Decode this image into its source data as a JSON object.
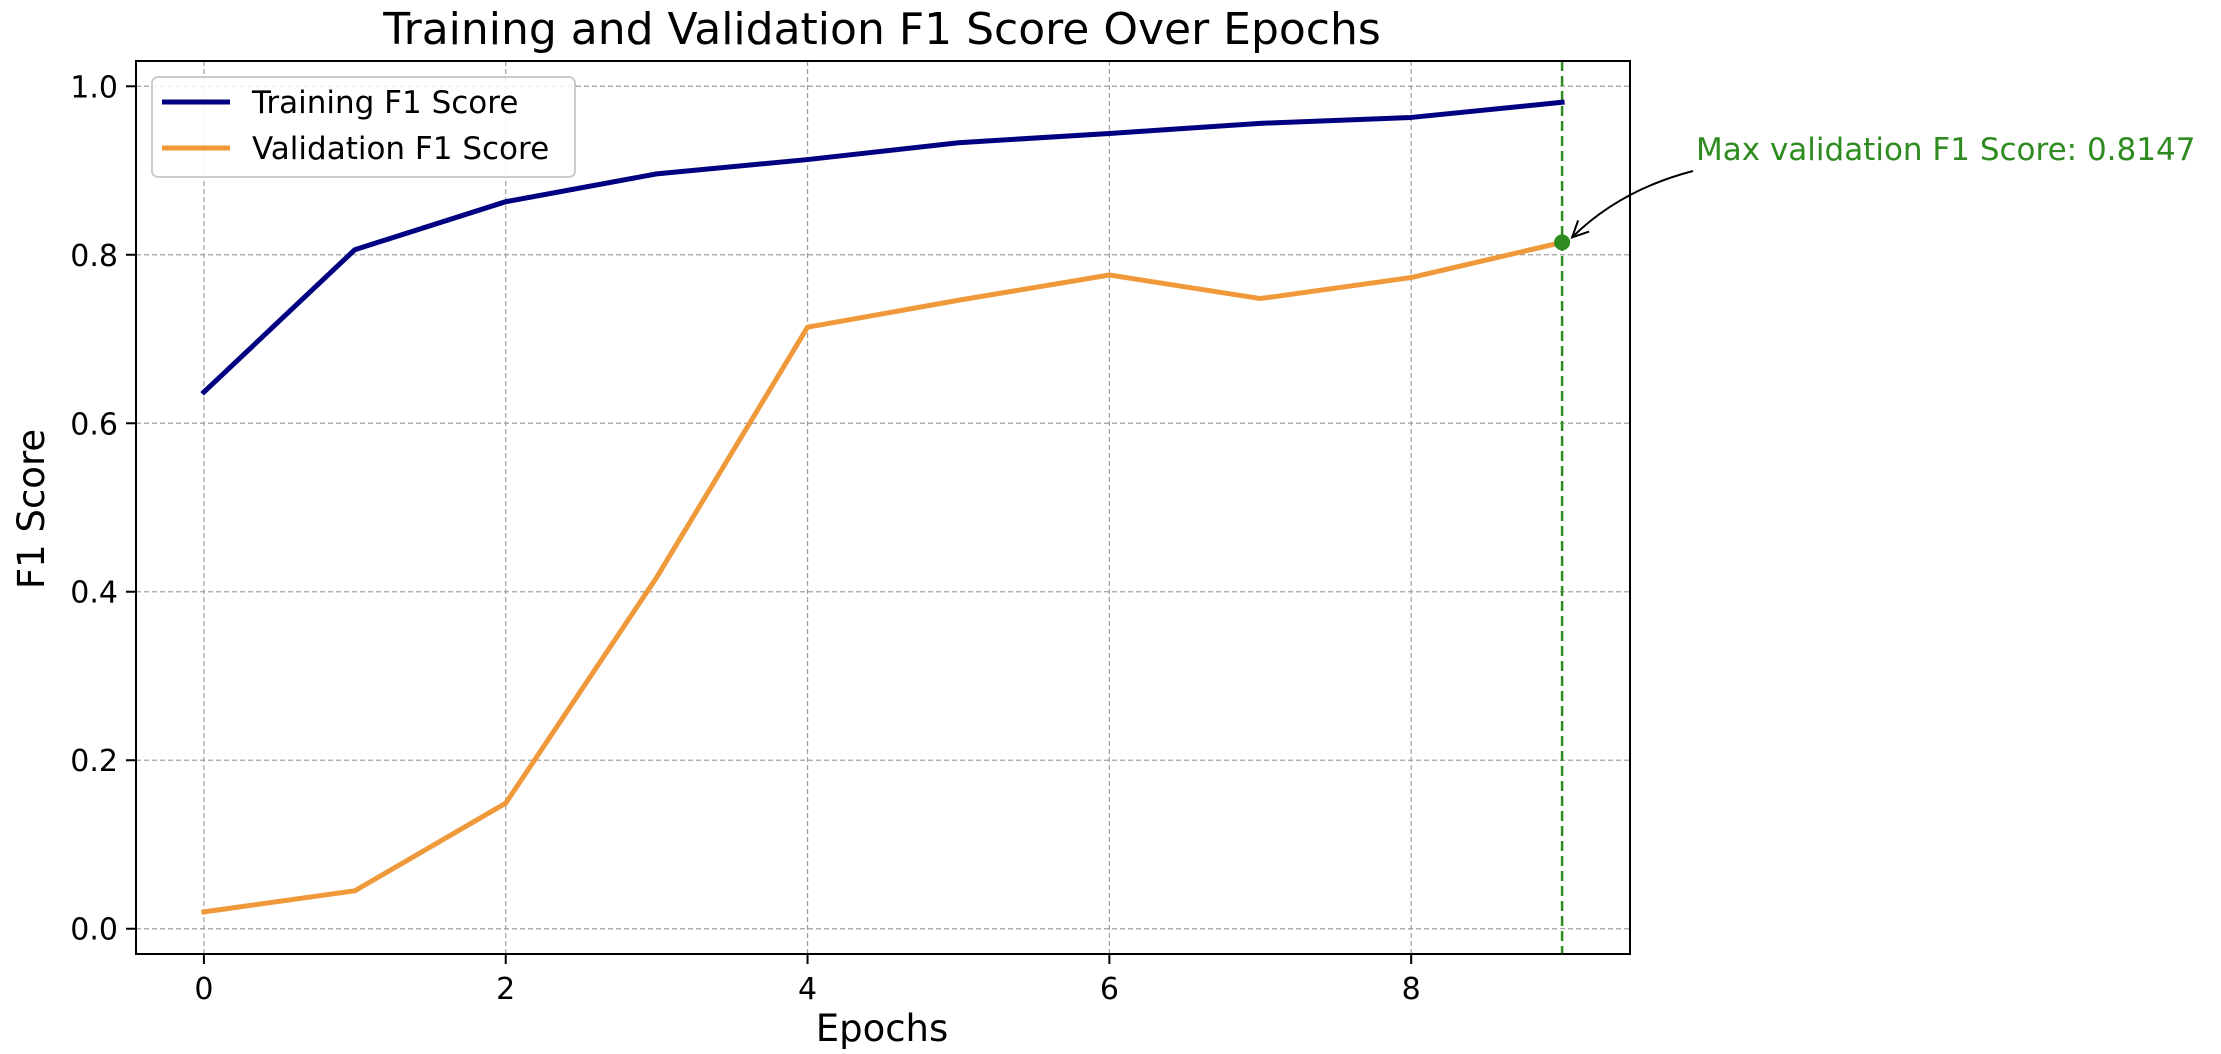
{
  "chart_data": {
    "type": "line",
    "title": "Training and Validation F1 Score Over Epochs",
    "xlabel": "Epochs",
    "ylabel": "F1 Score",
    "xlim": [
      -0.45,
      9.45
    ],
    "ylim": [
      -0.03,
      1.03
    ],
    "xticks": [
      0,
      2,
      4,
      6,
      8
    ],
    "yticks": [
      0.0,
      0.2,
      0.4,
      0.6,
      0.8,
      1.0
    ],
    "grid": true,
    "legend_position": "upper-left",
    "x": [
      0,
      1,
      2,
      3,
      4,
      5,
      6,
      7,
      8,
      9
    ],
    "series": [
      {
        "name": "Training F1 Score",
        "color": "#000080",
        "values": [
          0.637,
          0.806,
          0.863,
          0.896,
          0.913,
          0.933,
          0.944,
          0.956,
          0.963,
          0.981
        ]
      },
      {
        "name": "Validation F1 Score",
        "color": "#f0993a",
        "values": [
          0.02,
          0.045,
          0.149,
          0.417,
          0.714,
          0.746,
          0.776,
          0.748,
          0.773,
          0.8147
        ]
      }
    ],
    "annotation": {
      "text": "Max validation F1 Score: 0.8147",
      "x": 9,
      "y": 0.8147,
      "color": "#2e8b1f"
    },
    "vertical_line": {
      "x": 9,
      "color": "#2e8b1f",
      "style": "dashed"
    }
  }
}
